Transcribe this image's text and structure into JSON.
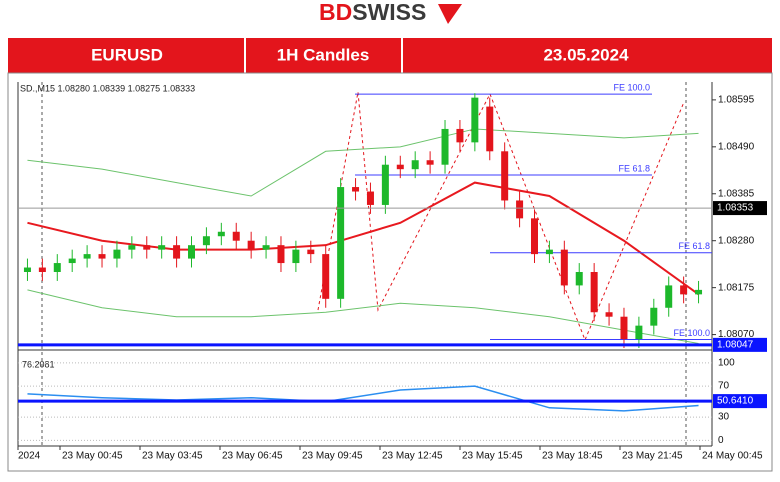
{
  "header": {
    "logo": [
      "BD",
      "SWISS"
    ],
    "cells": [
      "EURUSD",
      "1H Candles",
      "23.05.2024"
    ]
  },
  "chart_data": {
    "type": "candlestick",
    "info": "SD.,M15 1.08280 1.08339 1.08275 1.08333",
    "open": [
      1.0821,
      1.0822,
      1.0821,
      1.0823,
      1.0824,
      1.0825,
      1.0824,
      1.0826,
      1.0827,
      1.0826,
      1.0827,
      1.0824,
      1.0827,
      1.0829,
      1.083,
      1.0828,
      1.0826,
      1.0827,
      1.0823,
      1.0826,
      1.0825,
      1.0815,
      1.084,
      1.0839,
      1.0836,
      1.0845,
      1.0844,
      1.0846,
      1.0845,
      1.0853,
      1.085,
      1.0858,
      1.0848,
      1.0837,
      1.0833,
      1.0825,
      1.0826,
      1.0818,
      1.0821,
      1.0812,
      1.0811,
      1.0806,
      1.0809,
      1.0813,
      1.0818,
      1.0816
    ],
    "high": [
      1.0824,
      1.0824,
      1.0825,
      1.0826,
      1.0827,
      1.0827,
      1.0828,
      1.0829,
      1.0829,
      1.0829,
      1.0829,
      1.0829,
      1.0831,
      1.0832,
      1.0832,
      1.083,
      1.0829,
      1.0829,
      1.0828,
      1.0828,
      1.0827,
      1.0842,
      1.0842,
      1.0841,
      1.0847,
      1.0847,
      1.0848,
      1.0848,
      1.0855,
      1.0855,
      1.0861,
      1.086,
      1.085,
      1.0839,
      1.0835,
      1.0828,
      1.0828,
      1.0823,
      1.0823,
      1.0814,
      1.0813,
      1.0811,
      1.0815,
      1.082,
      1.082,
      1.0819
    ],
    "low": [
      1.0819,
      1.0819,
      1.0819,
      1.0821,
      1.0822,
      1.0822,
      1.0822,
      1.0824,
      1.0824,
      1.0824,
      1.0822,
      1.0822,
      1.0825,
      1.0827,
      1.0826,
      1.0824,
      1.0824,
      1.0821,
      1.0821,
      1.0823,
      1.0813,
      1.0813,
      1.0837,
      1.0834,
      1.0834,
      1.0842,
      1.0842,
      1.0843,
      1.0843,
      1.0848,
      1.0848,
      1.0846,
      1.0835,
      1.0831,
      1.0823,
      1.0823,
      1.0816,
      1.0816,
      1.081,
      1.0809,
      1.0804,
      1.0804,
      1.0807,
      1.0811,
      1.0814,
      1.0814
    ],
    "close": [
      1.0822,
      1.0821,
      1.0823,
      1.0824,
      1.0825,
      1.0824,
      1.0826,
      1.0827,
      1.0826,
      1.0827,
      1.0824,
      1.0827,
      1.0829,
      1.083,
      1.0828,
      1.0826,
      1.0827,
      1.0823,
      1.0826,
      1.0825,
      1.0815,
      1.084,
      1.0839,
      1.0836,
      1.0845,
      1.0844,
      1.0846,
      1.0845,
      1.0853,
      1.085,
      1.086,
      1.0848,
      1.0837,
      1.0833,
      1.0825,
      1.0826,
      1.0818,
      1.0821,
      1.0812,
      1.0811,
      1.0806,
      1.0809,
      1.0813,
      1.0818,
      1.0816,
      1.0817
    ],
    "up_color": "#1db82b",
    "down_color": "#e3151c",
    "ylim": [
      1.0804,
      1.08635
    ],
    "yticks": [
      {
        "value": 1.0807,
        "label": "1.08070"
      },
      1.08175,
      {
        "value": 1.0828,
        "label": "1.08280"
      },
      1.08385,
      {
        "value": 1.0849,
        "label": "1.08490"
      },
      1.08595
    ],
    "overlay_x": [
      0,
      5,
      10,
      15,
      20,
      25,
      30,
      35,
      40,
      45
    ],
    "overlays": [
      {
        "color": "#e8191f",
        "values": [
          1.0832,
          1.0828,
          1.0826,
          1.0826,
          1.0827,
          1.0832,
          1.0841,
          1.0838,
          1.0828,
          1.0816
        ]
      },
      {
        "color": "#6cc36c",
        "values": [
          1.0846,
          1.0844,
          1.0841,
          1.0838,
          1.0848,
          1.0849,
          1.0853,
          1.0852,
          1.0851,
          1.0852
        ]
      },
      {
        "color": "#6cc36c",
        "values": [
          1.0817,
          1.0813,
          1.0811,
          1.0811,
          1.0812,
          1.0814,
          1.0813,
          1.0811,
          1.0808,
          1.0805
        ]
      }
    ],
    "fibo": [
      {
        "label": "FE 100.0",
        "value": 1.08608
      },
      {
        "label": "FE 61.8",
        "value": 1.08427
      },
      {
        "label": "FE 61.8",
        "value": 1.08253
      },
      {
        "label": "FE 100.0",
        "value": 1.08059
      }
    ],
    "price_markers": [
      {
        "value": 1.08353,
        "label": "1.08353",
        "color": "#000000"
      },
      {
        "value": 1.08047,
        "label": "1.08047",
        "color": "#0a14ff"
      }
    ],
    "time_labels": [
      "2024",
      "23 May 00:45",
      "23 May 03:45",
      "23 May 06:45",
      "23 May 09:45",
      "23 May 12:45",
      "23 May 15:45",
      "23 May 18:45",
      "23 May 21:45",
      "24 May 00:45"
    ],
    "indicator": {
      "type": "line",
      "legend": "76.2081",
      "color": "#2b8ef0",
      "ylim": [
        -6,
        114
      ],
      "yticks": [
        0,
        30,
        70,
        100
      ],
      "values": [
        60,
        55,
        52,
        55,
        50,
        65,
        70,
        42,
        38,
        45
      ],
      "marker": {
        "value": 50.641,
        "label": "50.6410",
        "color": "#0a14ff"
      }
    }
  }
}
